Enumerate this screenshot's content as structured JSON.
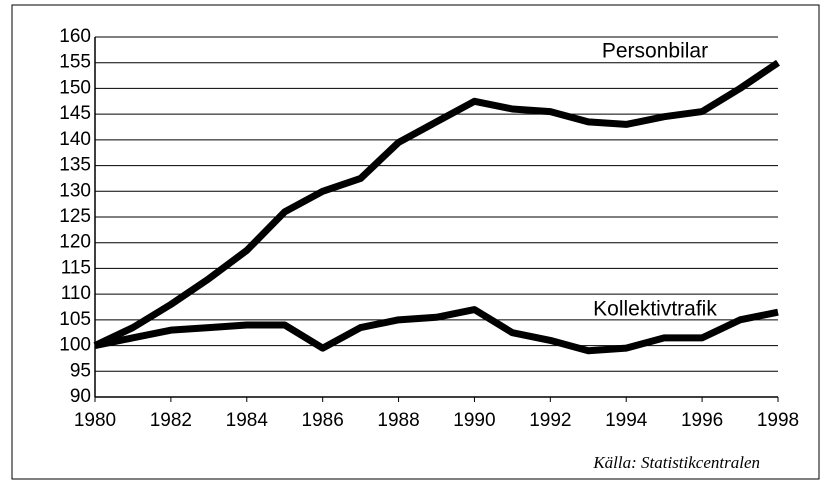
{
  "chart_data": {
    "type": "line",
    "source": "Källa: Statistikcentralen",
    "x": [
      1980,
      1981,
      1982,
      1983,
      1984,
      1985,
      1986,
      1987,
      1988,
      1989,
      1990,
      1991,
      1992,
      1993,
      1994,
      1995,
      1996,
      1997,
      1998
    ],
    "series": [
      {
        "name": "Personbilar",
        "color": "#000000",
        "values": [
          100,
          103.5,
          108,
          113,
          118.5,
          126,
          130,
          132.5,
          139.5,
          143.5,
          147.5,
          146,
          145.5,
          143.5,
          143,
          144.5,
          145.5,
          150,
          155
        ]
      },
      {
        "name": "Kollektivtrafik",
        "color": "#000000",
        "values": [
          100,
          101.5,
          103,
          103.5,
          104,
          104,
          99.5,
          103.5,
          105,
          105.5,
          107,
          102.5,
          101,
          99,
          99.5,
          101.5,
          101.5,
          105,
          106.5
        ]
      }
    ],
    "xlim": [
      1980,
      1998
    ],
    "xticks": [
      1980,
      1982,
      1984,
      1986,
      1988,
      1990,
      1992,
      1994,
      1996,
      1998
    ],
    "ylim": [
      90,
      160
    ],
    "yticks": [
      90,
      95,
      100,
      105,
      110,
      115,
      120,
      125,
      130,
      135,
      140,
      145,
      150,
      155,
      160
    ],
    "grid": true
  }
}
